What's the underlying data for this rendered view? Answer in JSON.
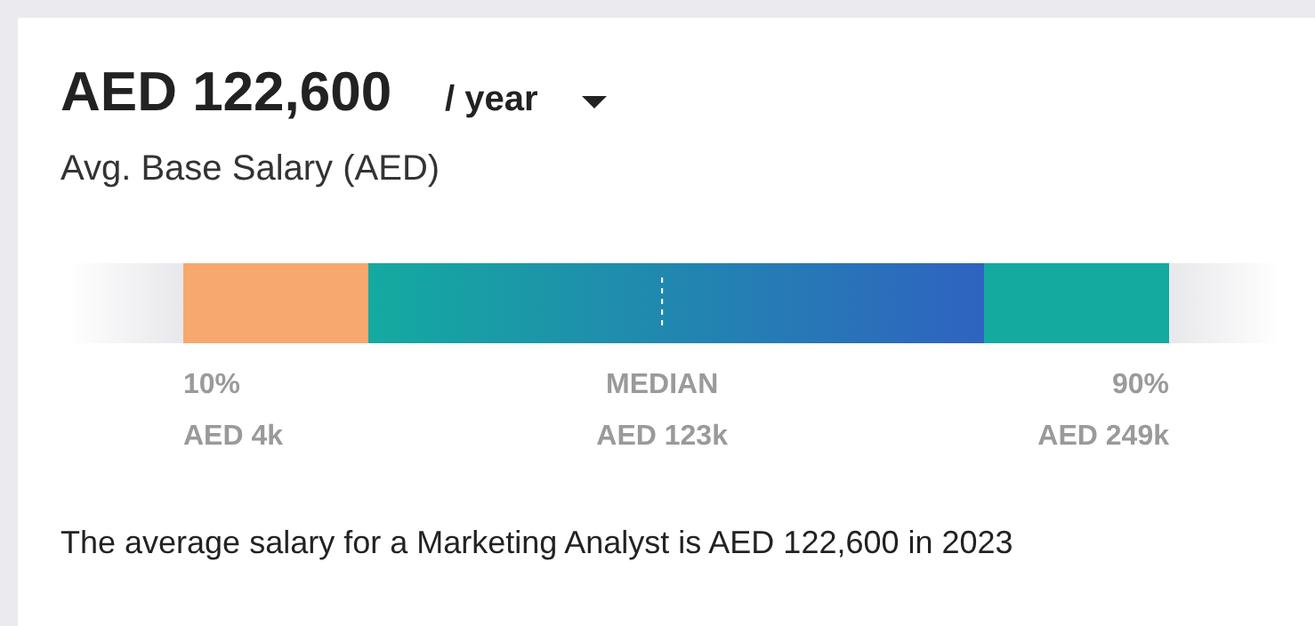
{
  "chart_data": {
    "type": "other",
    "title": "AED 122,600",
    "subtitle": "Avg. Base Salary (AED)",
    "categories": [
      "10%",
      "MEDIAN",
      "90%"
    ],
    "values": [
      4000,
      123000,
      249000
    ],
    "value_labels": [
      "AED 4k",
      "AED 123k",
      "AED 249k"
    ],
    "colors": [
      "#f7a86e",
      "#2f63c0",
      "#14aaa0"
    ],
    "annotations": [
      "/ year",
      "The average salary for a Marketing Analyst is AED 122,600 in 2023"
    ]
  }
}
